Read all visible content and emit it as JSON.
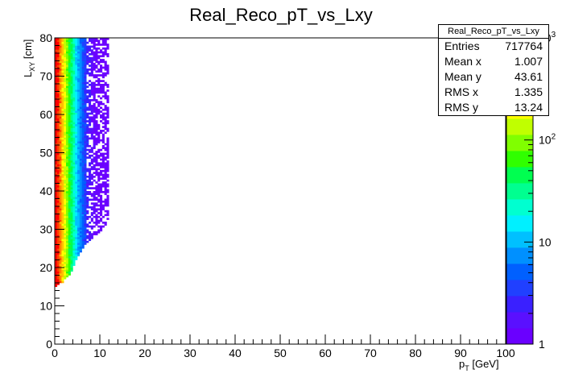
{
  "chart_data": {
    "type": "heatmap",
    "title": "Real_Reco_pT_vs_Lxy",
    "xlabel": "p_T [GeV]",
    "ylabel": "L_XY [cm]",
    "xlim": [
      0,
      100
    ],
    "ylim": [
      0,
      80
    ],
    "x_ticks": [
      "0",
      "10",
      "20",
      "30",
      "40",
      "50",
      "60",
      "70",
      "80",
      "90",
      "100"
    ],
    "y_ticks": [
      "0",
      "10",
      "20",
      "30",
      "40",
      "50",
      "60",
      "70",
      "80"
    ],
    "z_scale": "log",
    "zlim": [
      1,
      1000
    ],
    "z_tick_labels": [
      "1",
      "10",
      "10^2",
      "10^3"
    ],
    "grid": false,
    "description_of_distribution": "",
    "density_profile": {
      "x_bin_width": 0.5,
      "x_columns": [
        0.25,
        0.75,
        1.25,
        1.75,
        2.25,
        2.75,
        3.25,
        3.75,
        4.25,
        4.75,
        5.25,
        5.75,
        6.25,
        6.75,
        7.25,
        7.75,
        8.25,
        8.75,
        9.25,
        9.75,
        10.25,
        10.75,
        11.25,
        11.75
      ],
      "approx_counts_per_bin": [
        900,
        650,
        420,
        260,
        160,
        100,
        60,
        38,
        24,
        15,
        10,
        7,
        5,
        3.5,
        2.5,
        2,
        1.6,
        1.3,
        1.1,
        1,
        1,
        1,
        1,
        1
      ],
      "y_min_per_column": [
        15.0,
        15.5,
        16.0,
        16.0,
        17.0,
        17.5,
        18.0,
        19.0,
        20.5,
        22.0,
        23.0,
        24.0,
        25.0,
        26.0,
        26.5,
        27.0,
        27.5,
        28.0,
        28.5,
        29.0,
        29.5,
        30.0,
        31.0,
        32.0
      ]
    },
    "stats_box": {
      "name": "Real_Reco_pT_vs_Lxy",
      "entries_label": "Entries",
      "entries": "717764",
      "mean_x_label": "Mean x",
      "mean_x": "1.007",
      "mean_y_label": "Mean y",
      "mean_y": "43.61",
      "rms_x_label": "RMS x",
      "rms_x": "1.335",
      "rms_y_label": "RMS y",
      "rms_y": "13.24"
    },
    "palette": [
      "#6a00ff",
      "#5a10ff",
      "#3a20ff",
      "#2040ff",
      "#0060ff",
      "#0090ff",
      "#00c0ff",
      "#00f0ff",
      "#00ffd0",
      "#00ff90",
      "#00ff50",
      "#30ff00",
      "#80ff00",
      "#c0ff00",
      "#ffff00",
      "#ffc000",
      "#ff8000",
      "#ff4000",
      "#ff0000"
    ]
  }
}
